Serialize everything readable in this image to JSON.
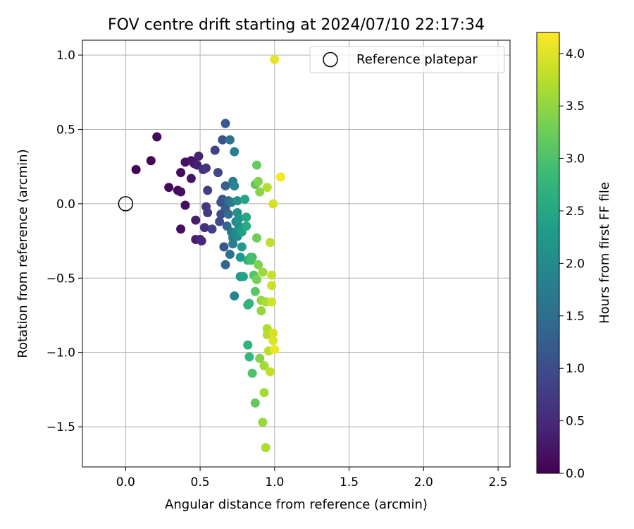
{
  "chart_data": {
    "type": "scatter",
    "title": "FOV centre drift starting at 2024/07/10 22:17:34",
    "xlabel": "Angular distance from reference (arcmin)",
    "ylabel": "Rotation from reference (arcmin)",
    "xlim": [
      -0.29,
      2.58
    ],
    "ylim": [
      -1.77,
      1.1
    ],
    "xticks": [
      0.0,
      0.5,
      1.0,
      1.5,
      2.0,
      2.5
    ],
    "xtick_labels": [
      "0.0",
      "0.5",
      "1.0",
      "1.5",
      "2.0",
      "2.5"
    ],
    "yticks": [
      1.0,
      0.5,
      0.0,
      -0.5,
      -1.0,
      -1.5
    ],
    "ytick_labels": [
      "1.0",
      "0.5",
      "0.0",
      "−0.5",
      "−1.0",
      "−1.5"
    ],
    "grid": true,
    "legend": {
      "location": "upper right",
      "entries": [
        {
          "label": "Reference platepar",
          "marker": "open-circle"
        }
      ]
    },
    "reference_point": {
      "x": 0.0,
      "y": 0.0
    },
    "colorbar": {
      "label": "Hours from first FF file",
      "colormap": "viridis",
      "range": [
        0.0,
        4.2
      ],
      "ticks": [
        0.0,
        0.5,
        1.0,
        1.5,
        2.0,
        2.5,
        3.0,
        3.5,
        4.0
      ],
      "tick_labels": [
        "0.0",
        "0.5",
        "1.0",
        "1.5",
        "2.0",
        "2.5",
        "3.0",
        "3.5",
        "4.0"
      ],
      "colors": [
        "#440154",
        "#482878",
        "#3e4989",
        "#31688e",
        "#26828e",
        "#1f9e89",
        "#35b779",
        "#6ece58",
        "#b5de2b",
        "#fde725"
      ]
    },
    "points": [
      {
        "x": 0.07,
        "y": 0.23,
        "c": 0.02
      },
      {
        "x": 0.17,
        "y": 0.29,
        "c": 0.05
      },
      {
        "x": 0.21,
        "y": 0.45,
        "c": 0.07
      },
      {
        "x": 0.29,
        "y": 0.11,
        "c": 0.09
      },
      {
        "x": 0.35,
        "y": 0.09,
        "c": 0.11
      },
      {
        "x": 0.37,
        "y": 0.21,
        "c": 0.13
      },
      {
        "x": 0.37,
        "y": 0.08,
        "c": 0.15
      },
      {
        "x": 0.37,
        "y": -0.17,
        "c": 0.14
      },
      {
        "x": 0.4,
        "y": -0.01,
        "c": 0.18
      },
      {
        "x": 0.4,
        "y": 0.28,
        "c": 0.21
      },
      {
        "x": 0.44,
        "y": 0.17,
        "c": 0.23
      },
      {
        "x": 0.44,
        "y": 0.29,
        "c": 0.26
      },
      {
        "x": 0.46,
        "y": 0.27,
        "c": 0.29
      },
      {
        "x": 0.47,
        "y": -0.11,
        "c": 0.32
      },
      {
        "x": 0.47,
        "y": -0.24,
        "c": 0.35
      },
      {
        "x": 0.48,
        "y": 0.26,
        "c": 0.37
      },
      {
        "x": 0.49,
        "y": 0.32,
        "c": 0.39
      },
      {
        "x": 0.5,
        "y": -0.24,
        "c": 0.42
      },
      {
        "x": 0.51,
        "y": -0.25,
        "c": 0.45
      },
      {
        "x": 0.52,
        "y": 0.23,
        "c": 0.55
      },
      {
        "x": 0.53,
        "y": -0.16,
        "c": 0.6
      },
      {
        "x": 0.54,
        "y": 0.24,
        "c": 0.64
      },
      {
        "x": 0.54,
        "y": -0.02,
        "c": 0.67
      },
      {
        "x": 0.55,
        "y": -0.06,
        "c": 0.72
      },
      {
        "x": 0.55,
        "y": 0.09,
        "c": 0.76
      },
      {
        "x": 0.58,
        "y": -0.17,
        "c": 0.8
      },
      {
        "x": 0.6,
        "y": 0.36,
        "c": 0.85
      },
      {
        "x": 0.62,
        "y": 0.21,
        "c": 0.92
      },
      {
        "x": 0.63,
        "y": -0.12,
        "c": 0.98
      },
      {
        "x": 0.64,
        "y": -0.07,
        "c": 1.02
      },
      {
        "x": 0.64,
        "y": 0.01,
        "c": 1.05
      },
      {
        "x": 0.65,
        "y": 0.43,
        "c": 1.08
      },
      {
        "x": 0.65,
        "y": 0.03,
        "c": 1.12
      },
      {
        "x": 0.66,
        "y": -0.29,
        "c": 1.15
      },
      {
        "x": 0.67,
        "y": 0.54,
        "c": 1.2
      },
      {
        "x": 0.67,
        "y": -0.03,
        "c": 1.25
      },
      {
        "x": 0.67,
        "y": 0.12,
        "c": 1.3
      },
      {
        "x": 0.67,
        "y": -0.41,
        "c": 1.35
      },
      {
        "x": 0.68,
        "y": -0.15,
        "c": 1.4
      },
      {
        "x": 0.69,
        "y": 0.02,
        "c": 1.45
      },
      {
        "x": 0.69,
        "y": -0.07,
        "c": 1.5
      },
      {
        "x": 0.7,
        "y": -0.34,
        "c": 1.55
      },
      {
        "x": 0.7,
        "y": 0.43,
        "c": 1.6
      },
      {
        "x": 0.71,
        "y": -0.19,
        "c": 1.65
      },
      {
        "x": 0.71,
        "y": 0.01,
        "c": 1.7
      },
      {
        "x": 0.72,
        "y": 0.15,
        "c": 1.75
      },
      {
        "x": 0.72,
        "y": -0.23,
        "c": 1.78
      },
      {
        "x": 0.72,
        "y": -0.27,
        "c": 1.8
      },
      {
        "x": 0.73,
        "y": 0.35,
        "c": 1.85
      },
      {
        "x": 0.73,
        "y": 0.12,
        "c": 1.9
      },
      {
        "x": 0.73,
        "y": -0.62,
        "c": 1.95
      },
      {
        "x": 0.74,
        "y": -0.19,
        "c": 2.0
      },
      {
        "x": 0.74,
        "y": -0.12,
        "c": 2.02
      },
      {
        "x": 0.75,
        "y": -0.22,
        "c": 2.05
      },
      {
        "x": 0.75,
        "y": 0.02,
        "c": 2.1
      },
      {
        "x": 0.75,
        "y": -0.06,
        "c": 2.12
      },
      {
        "x": 0.76,
        "y": -0.15,
        "c": 2.15
      },
      {
        "x": 0.76,
        "y": -0.1,
        "c": 2.18
      },
      {
        "x": 0.77,
        "y": -0.49,
        "c": 2.2
      },
      {
        "x": 0.77,
        "y": -0.36,
        "c": 2.25
      },
      {
        "x": 0.78,
        "y": -0.29,
        "c": 2.3
      },
      {
        "x": 0.78,
        "y": -0.19,
        "c": 2.35
      },
      {
        "x": 0.79,
        "y": -0.49,
        "c": 2.4
      },
      {
        "x": 0.8,
        "y": 0.03,
        "c": 2.45
      },
      {
        "x": 0.81,
        "y": -0.09,
        "c": 2.5
      },
      {
        "x": 0.81,
        "y": -0.15,
        "c": 2.55
      },
      {
        "x": 0.82,
        "y": -0.38,
        "c": 2.6
      },
      {
        "x": 0.82,
        "y": -0.68,
        "c": 2.65
      },
      {
        "x": 0.82,
        "y": -0.95,
        "c": 2.7
      },
      {
        "x": 0.83,
        "y": -0.67,
        "c": 2.75
      },
      {
        "x": 0.83,
        "y": -1.03,
        "c": 2.8
      },
      {
        "x": 0.84,
        "y": -0.36,
        "c": 2.85
      },
      {
        "x": 0.84,
        "y": -0.38,
        "c": 2.9
      },
      {
        "x": 0.85,
        "y": -0.36,
        "c": 2.95
      },
      {
        "x": 0.85,
        "y": -1.14,
        "c": 3.0
      },
      {
        "x": 0.86,
        "y": -0.48,
        "c": 3.05
      },
      {
        "x": 0.87,
        "y": -0.59,
        "c": 3.1
      },
      {
        "x": 0.87,
        "y": 0.13,
        "c": 3.15
      },
      {
        "x": 0.87,
        "y": -1.34,
        "c": 3.18
      },
      {
        "x": 0.88,
        "y": 0.26,
        "c": 3.2
      },
      {
        "x": 0.88,
        "y": -0.23,
        "c": 3.25
      },
      {
        "x": 0.88,
        "y": -0.51,
        "c": 3.3
      },
      {
        "x": 0.89,
        "y": -0.41,
        "c": 3.35
      },
      {
        "x": 0.89,
        "y": 0.15,
        "c": 3.4
      },
      {
        "x": 0.9,
        "y": -1.04,
        "c": 3.42
      },
      {
        "x": 0.9,
        "y": 0.08,
        "c": 3.45
      },
      {
        "x": 0.91,
        "y": -0.65,
        "c": 3.5
      },
      {
        "x": 0.91,
        "y": -0.72,
        "c": 3.52
      },
      {
        "x": 0.92,
        "y": -1.47,
        "c": 3.55
      },
      {
        "x": 0.92,
        "y": -0.46,
        "c": 3.58
      },
      {
        "x": 0.93,
        "y": -1.09,
        "c": 3.6
      },
      {
        "x": 0.93,
        "y": -1.27,
        "c": 3.62
      },
      {
        "x": 0.94,
        "y": -0.66,
        "c": 3.65
      },
      {
        "x": 0.94,
        "y": -1.64,
        "c": 3.67
      },
      {
        "x": 0.95,
        "y": -0.84,
        "c": 3.7
      },
      {
        "x": 0.95,
        "y": 0.11,
        "c": 3.72
      },
      {
        "x": 0.95,
        "y": -0.88,
        "c": 3.75
      },
      {
        "x": 0.96,
        "y": -0.99,
        "c": 3.78
      },
      {
        "x": 0.97,
        "y": -0.26,
        "c": 3.8
      },
      {
        "x": 0.97,
        "y": -1.13,
        "c": 3.82
      },
      {
        "x": 0.98,
        "y": -0.48,
        "c": 3.85
      },
      {
        "x": 0.98,
        "y": -0.55,
        "c": 3.88
      },
      {
        "x": 0.98,
        "y": -0.66,
        "c": 3.9
      },
      {
        "x": 0.99,
        "y": 0.0,
        "c": 3.93
      },
      {
        "x": 0.99,
        "y": -0.87,
        "c": 3.95
      },
      {
        "x": 0.99,
        "y": -0.92,
        "c": 3.98
      },
      {
        "x": 1.0,
        "y": 0.97,
        "c": 4.05
      },
      {
        "x": 1.0,
        "y": -0.98,
        "c": 4.1
      },
      {
        "x": 1.04,
        "y": 0.18,
        "c": 4.15
      }
    ]
  }
}
